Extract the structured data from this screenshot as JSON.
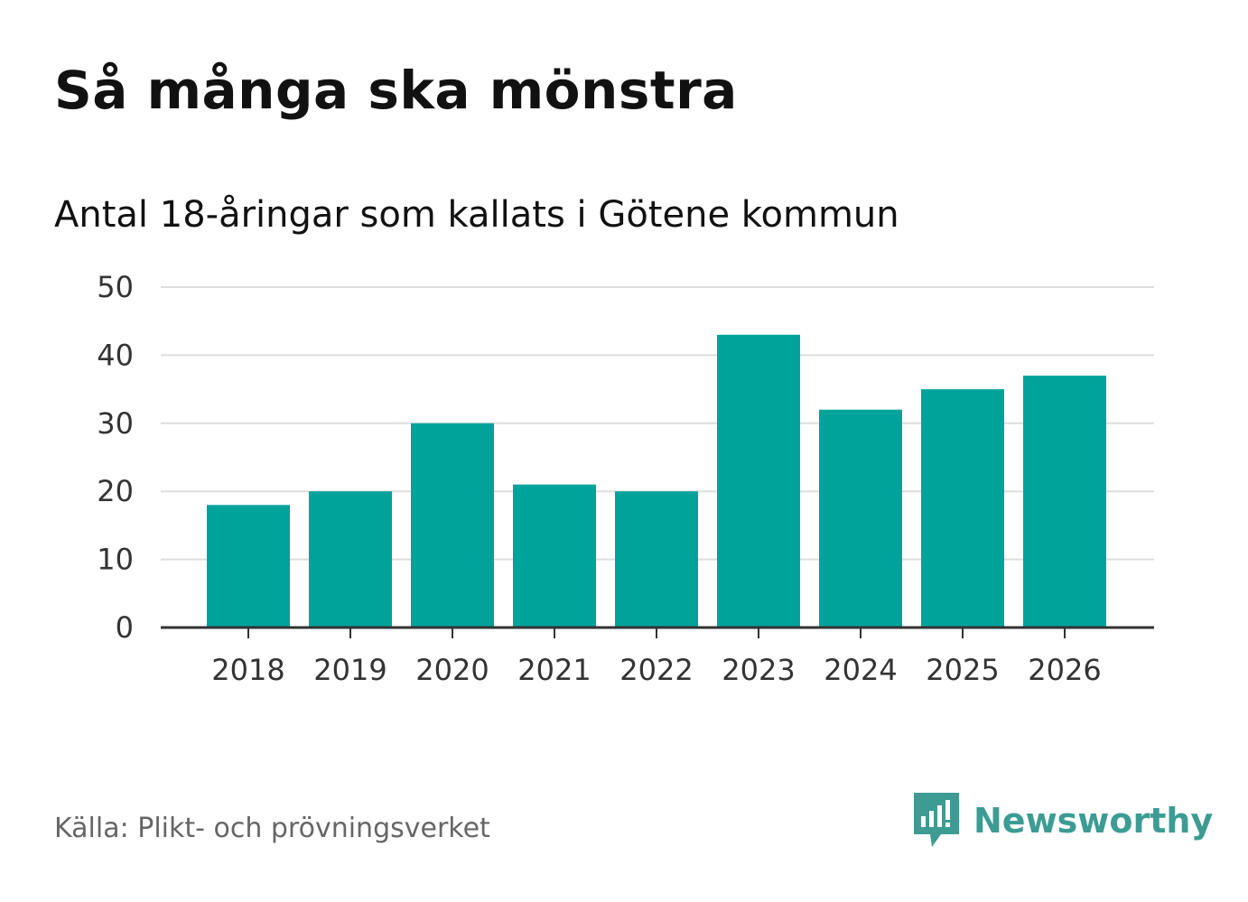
{
  "header": {
    "title": "Så många ska mönstra",
    "subtitle": "Antal 18-åringar som kallats i Götene kommun"
  },
  "footer": {
    "source": "Källa: Plikt- och prövningsverket",
    "brand": "Newsworthy"
  },
  "colors": {
    "bar": "#00a39a",
    "grid": "#dddddd",
    "axis": "#333333",
    "brand": "#3c9c93"
  },
  "chart_data": {
    "type": "bar",
    "title": "Så många ska mönstra",
    "subtitle": "Antal 18-åringar som kallats i Götene kommun",
    "xlabel": "",
    "ylabel": "",
    "categories": [
      "2018",
      "2019",
      "2020",
      "2021",
      "2022",
      "2023",
      "2024",
      "2025",
      "2026"
    ],
    "values": [
      18,
      20,
      30,
      21,
      20,
      43,
      32,
      35,
      37
    ],
    "ylim": [
      0,
      50
    ],
    "yticks": [
      0,
      10,
      20,
      30,
      40,
      50
    ],
    "grid": true,
    "legend": "none"
  }
}
